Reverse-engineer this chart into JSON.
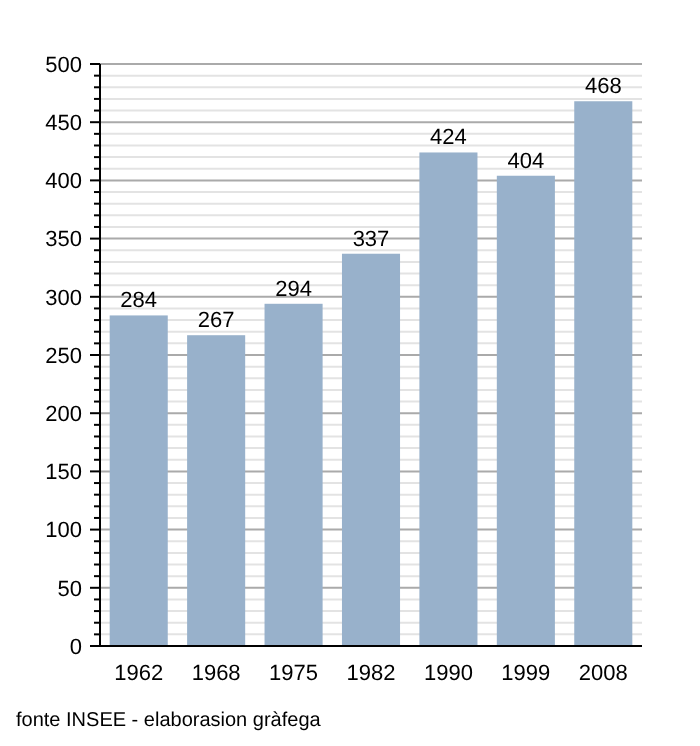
{
  "chart_data": {
    "type": "bar",
    "categories": [
      "1962",
      "1968",
      "1975",
      "1982",
      "1990",
      "1999",
      "2008"
    ],
    "values": [
      284,
      267,
      294,
      337,
      424,
      404,
      468
    ],
    "color": "#98b1cb",
    "data_labels": true,
    "ylim": [
      0,
      500
    ],
    "yticks": [
      0,
      {
        "value": 10,
        "label": null
      },
      {
        "value": 20,
        "label": null
      },
      {
        "value": 30,
        "label": null
      },
      {
        "value": 40,
        "label": null
      },
      50,
      {
        "value": 60,
        "label": null
      },
      {
        "value": 70,
        "label": null
      },
      {
        "value": 80,
        "label": null
      },
      {
        "value": 90,
        "label": null
      },
      100,
      {
        "value": 110,
        "label": null
      },
      {
        "value": 120,
        "label": null
      },
      {
        "value": 130,
        "label": null
      },
      {
        "value": 140,
        "label": null
      },
      150,
      {
        "value": 160,
        "label": null
      },
      {
        "value": 170,
        "label": null
      },
      {
        "value": 180,
        "label": null
      },
      {
        "value": 190,
        "label": null
      },
      200,
      {
        "value": 210,
        "label": null
      },
      {
        "value": 220,
        "label": null
      },
      {
        "value": 230,
        "label": null
      },
      {
        "value": 240,
        "label": null
      },
      250,
      {
        "value": 260,
        "label": null
      },
      {
        "value": 270,
        "label": null
      },
      {
        "value": 280,
        "label": null
      },
      {
        "value": 290,
        "label": null
      },
      300,
      {
        "value": 310,
        "label": null
      },
      {
        "value": 320,
        "label": null
      },
      {
        "value": 330,
        "label": null
      },
      {
        "value": 340,
        "label": null
      },
      350,
      {
        "value": 360,
        "label": null
      },
      {
        "value": 370,
        "label": null
      },
      {
        "value": 380,
        "label": null
      },
      {
        "value": 390,
        "label": null
      },
      400,
      {
        "value": 410,
        "label": null
      },
      {
        "value": 420,
        "label": null
      },
      {
        "value": 430,
        "label": null
      },
      {
        "value": 440,
        "label": null
      },
      450,
      {
        "value": 460,
        "label": null
      },
      {
        "value": 470,
        "label": null
      },
      {
        "value": 480,
        "label": null
      },
      {
        "value": 490,
        "label": null
      },
      500
    ],
    "grid": true,
    "annotations": [
      "fonte INSEE - elaborasion gràfega"
    ]
  }
}
